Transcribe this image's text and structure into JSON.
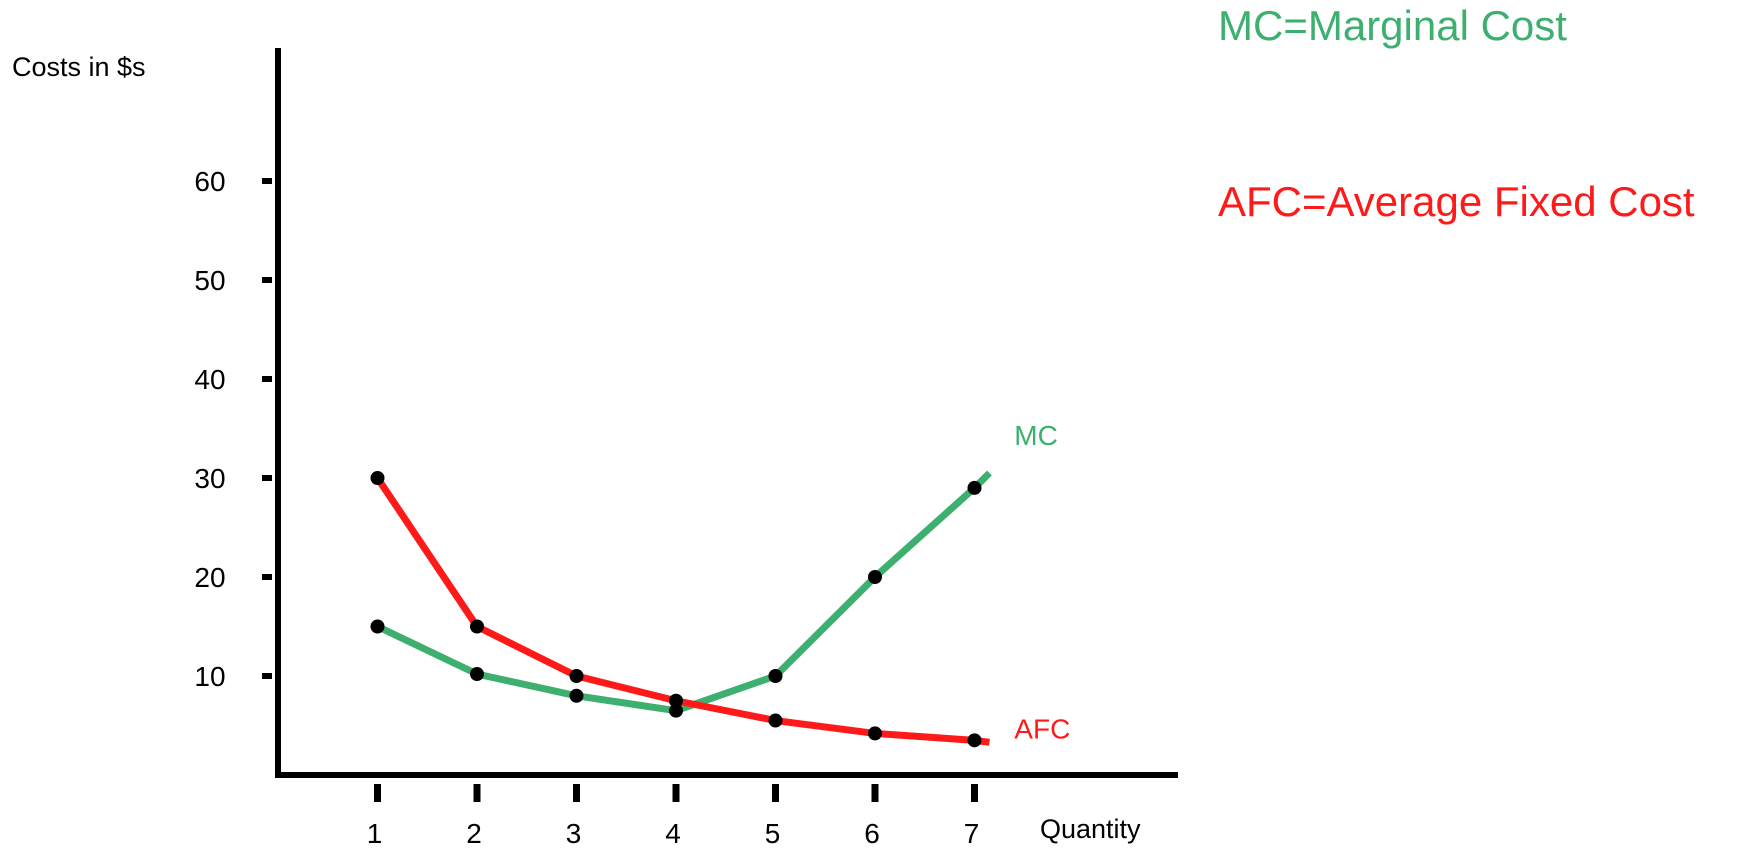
{
  "legend": {
    "mc_text": "MC=Marginal Cost",
    "afc_text": "AFC=Average Fixed Cost"
  },
  "colors": {
    "mc": "#3daf6f",
    "afc": "#ff1a1a",
    "axis": "#000000",
    "marker": "#000000"
  },
  "chart_data": {
    "type": "line",
    "ylabel": "Costs in $s",
    "xlabel": "Quantity",
    "x": [
      1,
      2,
      3,
      4,
      5,
      6,
      7
    ],
    "xticks": [
      "1",
      "2",
      "3",
      "4",
      "5",
      "6",
      "7"
    ],
    "yticks": [
      "10",
      "20",
      "30",
      "40",
      "50",
      "60"
    ],
    "ylim": [
      0,
      60
    ],
    "xlim": [
      0,
      8
    ],
    "grid": false,
    "series": [
      {
        "key": "mc",
        "name": "MC",
        "color": "#3daf6f",
        "values": [
          15,
          10.2,
          8,
          6.5,
          10,
          20,
          29
        ],
        "extend_to": 30.5
      },
      {
        "key": "afc",
        "name": "AFC",
        "color": "#ff1a1a",
        "values": [
          30,
          15,
          10,
          7.5,
          5.5,
          4.2,
          3.5
        ],
        "extend_to": 3.3
      }
    ]
  }
}
